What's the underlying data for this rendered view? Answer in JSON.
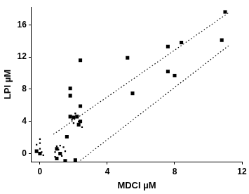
{
  "chart_data": {
    "type": "scatter",
    "x_label": "MDCI µM",
    "y_label": "LPI µM",
    "xlim": [
      -0.5,
      12
    ],
    "xticks": [
      0,
      4,
      8,
      12
    ],
    "ylim": [
      -1,
      18.2
    ],
    "yticks": [
      0,
      4,
      8,
      12,
      16
    ],
    "grid": false,
    "series": [
      {
        "type": "scatter",
        "marker": "square",
        "color": "#000000",
        "x": [
          11.0,
          10.8,
          8.4,
          7.6,
          5.2,
          7.6,
          8.0,
          5.5,
          2.4,
          1.8,
          1.8,
          2.4,
          2.0,
          2.2,
          1.8,
          2.4,
          2.3,
          1.6,
          2.1,
          1.0,
          1.0,
          1.2,
          1.5,
          -0.2,
          0.0
        ],
        "values": [
          17.6,
          14.1,
          13.8,
          13.3,
          11.9,
          10.2,
          9.7,
          7.5,
          11.6,
          8.1,
          7.2,
          5.9,
          4.5,
          4.6,
          4.6,
          4.0,
          3.6,
          2.1,
          -0.8,
          0.6,
          -0.6,
          0.0,
          -0.9,
          0.3,
          0.0
        ]
      },
      {
        "type": "scatter",
        "marker": "square",
        "color": "#000000",
        "x": [
          -0.2,
          0.0,
          0.0,
          0.0,
          0.1,
          0.2,
          0.9,
          1.0,
          1.1,
          1.3,
          1.5,
          1.4,
          1.9,
          2.0,
          2.1,
          2.3,
          2.5,
          0.9,
          1.2
        ],
        "values": [
          1.1,
          1.8,
          1.3,
          0.6,
          0.2,
          -0.2,
          0.2,
          0.9,
          0.5,
          -0.3,
          0.3,
          0.8,
          4.2,
          3.8,
          5.0,
          4.0,
          3.3,
          -0.4,
          1.0
        ]
      },
      {
        "type": "line",
        "line_style": "dotted",
        "color": "#000000",
        "x": [
          0.8,
          11.2
        ],
        "values": [
          2.4,
          17.5
        ]
      },
      {
        "type": "line",
        "line_style": "dotted",
        "color": "#000000",
        "x": [
          2.4,
          11.2
        ],
        "values": [
          -0.85,
          13.4
        ]
      }
    ]
  }
}
